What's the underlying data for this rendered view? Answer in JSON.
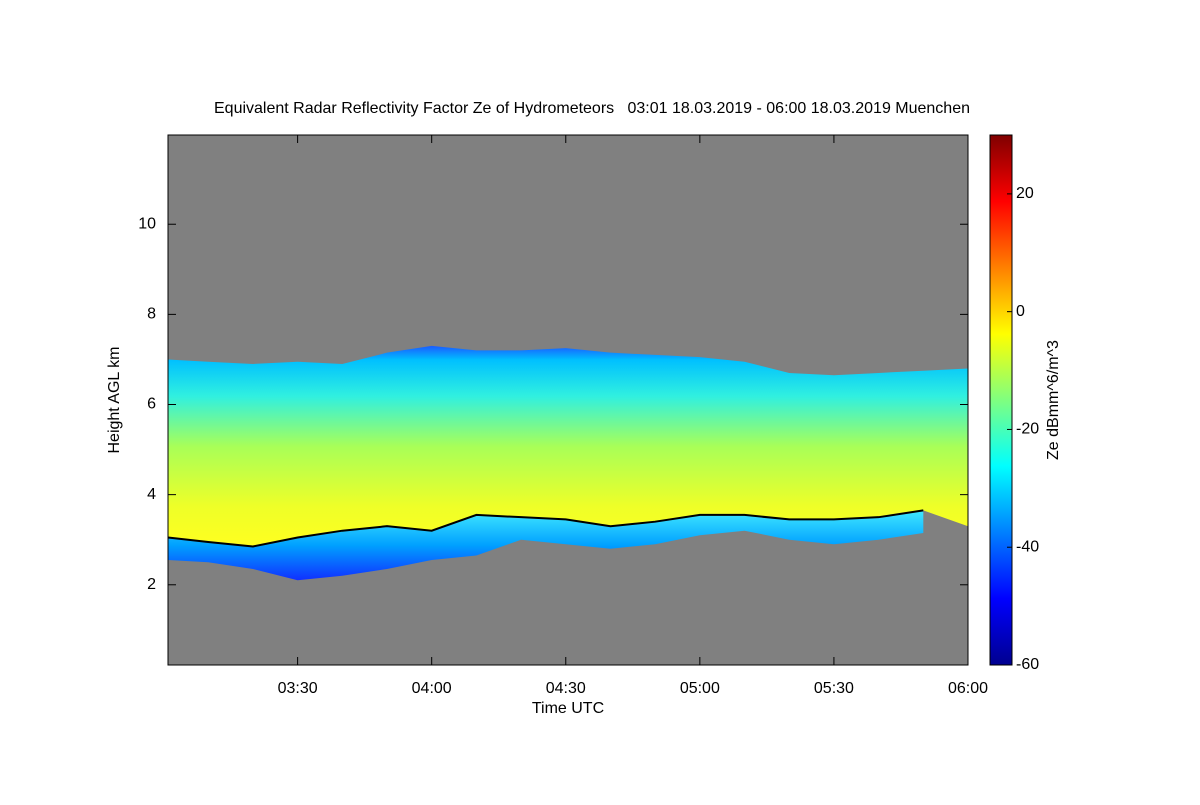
{
  "chart_data": {
    "type": "radar-heightmap",
    "title": "Equivalent Radar Reflectivity Factor Ze of Hydrometeors   03:01 18.03.2019 - 06:00 18.03.2019 Muenchen",
    "x_label": "Time UTC",
    "y_label": "Height AGL km",
    "colorbar_label": "Ze dBmm^6/m^3",
    "x": [
      "03:01",
      "03:10",
      "03:20",
      "03:30",
      "03:40",
      "03:50",
      "04:00",
      "04:10",
      "04:20",
      "04:30",
      "04:40",
      "04:50",
      "05:00",
      "05:10",
      "05:20",
      "05:30",
      "05:40",
      "05:50",
      "06:00"
    ],
    "echo_top": [
      7.0,
      6.95,
      6.9,
      6.95,
      6.9,
      7.15,
      7.3,
      7.2,
      7.2,
      7.25,
      7.15,
      7.1,
      7.05,
      6.95,
      6.7,
      6.65,
      6.7,
      6.75,
      6.8
    ],
    "echo_base": [
      2.55,
      2.5,
      2.35,
      2.1,
      2.2,
      2.35,
      2.55,
      2.65,
      3.0,
      2.9,
      2.8,
      2.9,
      3.1,
      3.2,
      3.0,
      2.9,
      3.0,
      3.15,
      3.3
    ],
    "melting_layer": [
      3.05,
      2.95,
      2.85,
      3.05,
      3.2,
      3.3,
      3.2,
      3.55,
      3.5,
      3.45,
      3.3,
      3.4,
      3.55,
      3.55,
      3.45,
      3.45,
      3.5,
      3.65,
      null
    ],
    "xlim": [
      "03:01",
      "06:00"
    ],
    "xticks": [
      "03:30",
      "04:00",
      "04:30",
      "05:00",
      "05:30",
      "06:00"
    ],
    "ylim": [
      0.22,
      11.98
    ],
    "yticks": [
      2,
      4,
      6,
      8,
      10
    ],
    "zlim": [
      -60,
      30
    ],
    "zticks": [
      -60,
      -40,
      -20,
      0,
      20
    ],
    "colormap": "jet",
    "background": "#808080",
    "melting_layer_color": "#000000"
  }
}
